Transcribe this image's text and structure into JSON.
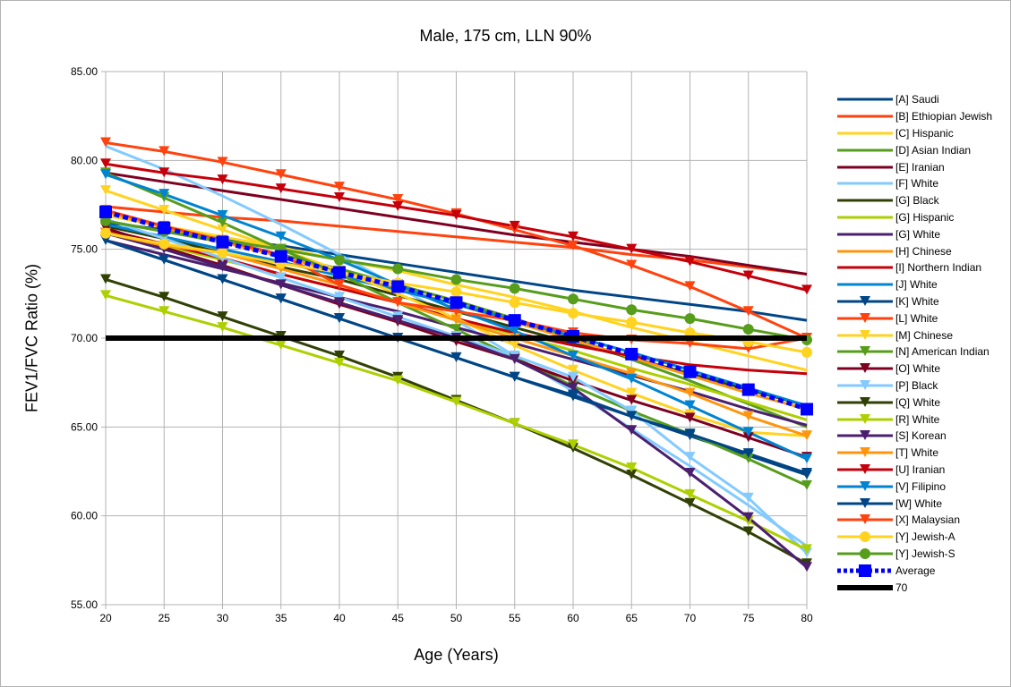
{
  "chart_data": {
    "type": "line",
    "title": "Male, 175 cm, LLN 90%",
    "xlabel": "Age (Years)",
    "ylabel": "FEV1/FVC Ratio (%)",
    "xlim": [
      20,
      80
    ],
    "ylim": [
      55,
      85
    ],
    "x_ticks": [
      "20",
      "25",
      "30",
      "35",
      "40",
      "45",
      "50",
      "55",
      "60",
      "65",
      "70",
      "75",
      "80"
    ],
    "y_ticks": [
      "55.00",
      "60.00",
      "65.00",
      "70.00",
      "75.00",
      "80.00",
      "85.00"
    ],
    "grid": true,
    "legend_position": "right",
    "x": [
      20,
      25,
      30,
      35,
      40,
      45,
      50,
      55,
      60,
      65,
      70,
      75,
      80
    ],
    "series": [
      {
        "name": "[A] Saudi",
        "color": "#004586",
        "marker": "none",
        "dashed": false,
        "values": [
          76.5,
          76.1,
          75.6,
          75.2,
          74.7,
          74.2,
          73.7,
          73.2,
          72.7,
          72.3,
          71.9,
          71.5,
          71.0
        ]
      },
      {
        "name": "[B] Ethiopian Jewish",
        "color": "#ff420e",
        "marker": "none",
        "dashed": false,
        "values": [
          77.4,
          77.1,
          76.8,
          76.6,
          76.3,
          76.0,
          75.7,
          75.4,
          75.1,
          74.7,
          74.4,
          74.0,
          73.6
        ]
      },
      {
        "name": "[C] Hispanic",
        "color": "#ffd320",
        "marker": "none",
        "dashed": false,
        "values": [
          76.9,
          76.3,
          75.7,
          75.1,
          74.4,
          73.8,
          73.0,
          72.3,
          71.5,
          70.6,
          69.8,
          69.0,
          68.2
        ]
      },
      {
        "name": "[D] Asian Indian",
        "color": "#579d1c",
        "marker": "none",
        "dashed": false,
        "values": [
          76.6,
          76.0,
          75.4,
          74.7,
          73.9,
          73.0,
          72.1,
          71.1,
          70.0,
          68.8,
          67.6,
          66.3,
          65.0
        ]
      },
      {
        "name": "[E] Iranian",
        "color": "#7e0021",
        "marker": "none",
        "dashed": false,
        "values": [
          79.3,
          78.8,
          78.3,
          77.8,
          77.3,
          76.8,
          76.3,
          75.8,
          75.4,
          75.0,
          74.6,
          74.1,
          73.6
        ]
      },
      {
        "name": "[F] White",
        "color": "#83caff",
        "marker": "none",
        "dashed": false,
        "values": [
          80.8,
          79.5,
          78.0,
          76.4,
          74.7,
          72.9,
          71.0,
          69.0,
          67.0,
          64.9,
          62.8,
          60.6,
          58.3
        ]
      },
      {
        "name": "[G] Black",
        "color": "#314004",
        "marker": "none",
        "dashed": false,
        "values": [
          76.3,
          75.6,
          74.8,
          74.0,
          73.3,
          72.4,
          71.5,
          70.6,
          69.7,
          68.9,
          68.0,
          67.1,
          66.2
        ]
      },
      {
        "name": "[G] Hispanic",
        "color": "#aecf00",
        "marker": "none",
        "dashed": false,
        "values": [
          76.0,
          75.2,
          74.4,
          73.6,
          72.8,
          72.0,
          71.1,
          70.2,
          69.3,
          68.3,
          67.4,
          66.4,
          65.4
        ]
      },
      {
        "name": "[G] White",
        "color": "#4b1f6f",
        "marker": "none",
        "dashed": false,
        "values": [
          75.5,
          74.7,
          73.9,
          73.1,
          72.3,
          71.5,
          70.6,
          69.7,
          68.8,
          67.9,
          67.0,
          66.0,
          65.1
        ]
      },
      {
        "name": "[H] Chinese",
        "color": "#ff950e",
        "marker": "none",
        "dashed": false,
        "values": [
          77.1,
          76.2,
          75.4,
          74.6,
          73.7,
          72.8,
          71.9,
          70.9,
          69.9,
          68.9,
          67.9,
          66.9,
          66.0
        ]
      },
      {
        "name": "[I] Northern Indian",
        "color": "#c5000b",
        "marker": "none",
        "dashed": false,
        "values": [
          76.1,
          75.3,
          74.5,
          73.6,
          72.8,
          72.0,
          71.1,
          70.3,
          69.6,
          69.0,
          68.5,
          68.2,
          68.0
        ]
      },
      {
        "name": "[J] White",
        "color": "#0084d1",
        "marker": "none",
        "dashed": false,
        "values": [
          76.4,
          75.7,
          75.0,
          74.3,
          73.5,
          72.7,
          71.9,
          71.0,
          70.1,
          69.2,
          68.2,
          67.2,
          66.2
        ]
      },
      {
        "name": "[K] White",
        "color": "#004586",
        "marker": "triangle",
        "dashed": false,
        "values": [
          75.5,
          74.4,
          73.3,
          72.2,
          71.1,
          70.0,
          68.9,
          67.8,
          66.7,
          65.6,
          64.5,
          63.4,
          62.3
        ]
      },
      {
        "name": "[L] White",
        "color": "#ff420e",
        "marker": "triangle",
        "dashed": false,
        "values": [
          81.0,
          80.5,
          79.9,
          79.2,
          78.5,
          77.8,
          77.0,
          76.1,
          75.2,
          74.1,
          72.9,
          71.5,
          70.0
        ]
      },
      {
        "name": "[M] Chinese",
        "color": "#ffd320",
        "marker": "triangle",
        "dashed": false,
        "values": [
          78.3,
          77.2,
          76.1,
          75.0,
          73.8,
          72.5,
          71.1,
          69.6,
          68.2,
          66.9,
          65.7,
          64.7,
          64.5
        ]
      },
      {
        "name": "[N] American Indian",
        "color": "#579d1c",
        "marker": "triangle",
        "dashed": false,
        "values": [
          79.3,
          77.9,
          76.5,
          75.0,
          73.6,
          72.0,
          70.5,
          68.9,
          67.3,
          65.9,
          64.6,
          63.2,
          61.7
        ]
      },
      {
        "name": "[O] White",
        "color": "#7e0021",
        "marker": "triangle",
        "dashed": false,
        "values": [
          76.2,
          75.1,
          74.1,
          73.0,
          71.9,
          70.9,
          69.8,
          68.8,
          67.6,
          66.5,
          65.5,
          64.4,
          63.3
        ]
      },
      {
        "name": "[P] Black",
        "color": "#83caff",
        "marker": "triangle",
        "dashed": false,
        "values": [
          76.7,
          75.6,
          74.5,
          73.4,
          72.3,
          71.2,
          70.1,
          69.0,
          67.8,
          65.9,
          63.3,
          61.0,
          57.9
        ]
      },
      {
        "name": "[Q] White",
        "color": "#314004",
        "marker": "triangle",
        "dashed": false,
        "values": [
          73.3,
          72.3,
          71.2,
          70.1,
          69.0,
          67.8,
          66.5,
          65.2,
          63.8,
          62.3,
          60.7,
          59.1,
          57.3
        ]
      },
      {
        "name": "[R] White",
        "color": "#aecf00",
        "marker": "triangle",
        "dashed": false,
        "values": [
          72.4,
          71.5,
          70.6,
          69.6,
          68.6,
          67.6,
          66.4,
          65.2,
          64.0,
          62.7,
          61.2,
          59.7,
          58.1
        ]
      },
      {
        "name": "[S] Korean",
        "color": "#4b1f6f",
        "marker": "triangle",
        "dashed": false,
        "values": [
          75.9,
          75.0,
          74.0,
          73.0,
          72.0,
          71.0,
          70.0,
          68.8,
          67.2,
          64.8,
          62.4,
          59.9,
          57.1
        ]
      },
      {
        "name": "[T] White",
        "color": "#ff950e",
        "marker": "triangle",
        "dashed": false,
        "values": [
          75.9,
          75.2,
          74.8,
          73.9,
          73.0,
          72.0,
          71.0,
          70.0,
          69.0,
          68.0,
          66.9,
          65.6,
          64.5
        ]
      },
      {
        "name": "[U] Iranian",
        "color": "#c5000b",
        "marker": "triangle",
        "dashed": false,
        "values": [
          79.8,
          79.3,
          78.9,
          78.4,
          77.9,
          77.4,
          76.9,
          76.3,
          75.7,
          75.0,
          74.3,
          73.5,
          72.7
        ]
      },
      {
        "name": "[V] Filipino",
        "color": "#0084d1",
        "marker": "triangle",
        "dashed": false,
        "values": [
          79.2,
          78.1,
          76.9,
          75.7,
          74.4,
          73.0,
          71.6,
          70.4,
          69.0,
          67.7,
          66.2,
          64.7,
          63.2
        ]
      },
      {
        "name": "[W] White",
        "color": "#004586",
        "marker": "triangle",
        "dashed": false,
        "values": [
          75.5,
          74.4,
          73.3,
          72.2,
          71.1,
          70.0,
          68.9,
          67.8,
          66.8,
          65.6,
          64.6,
          63.5,
          62.4
        ]
      },
      {
        "name": "[X] Malaysian",
        "color": "#ff420e",
        "marker": "triangle",
        "dashed": false,
        "values": [
          77.2,
          76.3,
          75.5,
          74.7,
          73.0,
          72.0,
          71.5,
          71.0,
          70.3,
          69.9,
          69.7,
          69.4,
          70.0
        ]
      },
      {
        "name": "[Y] Jewish-A",
        "color": "#ffd320",
        "marker": "circle",
        "dashed": false,
        "values": [
          75.9,
          75.3,
          74.8,
          74.2,
          73.7,
          73.1,
          72.6,
          72.0,
          71.4,
          70.9,
          70.3,
          69.8,
          69.2
        ]
      },
      {
        "name": "[Y] Jewish-S",
        "color": "#579d1c",
        "marker": "circle",
        "dashed": false,
        "values": [
          76.6,
          76.0,
          75.5,
          75.0,
          74.4,
          73.9,
          73.3,
          72.8,
          72.2,
          71.6,
          71.1,
          70.5,
          69.9
        ]
      },
      {
        "name": "Average",
        "color": "#0000ff",
        "marker": "square",
        "dashed": true,
        "values": [
          77.1,
          76.2,
          75.4,
          74.6,
          73.7,
          72.9,
          72.0,
          71.0,
          70.1,
          69.1,
          68.1,
          67.1,
          66.0
        ]
      },
      {
        "name": "70",
        "color": "#000000",
        "marker": "none",
        "dashed": false,
        "thick": true,
        "values": [
          70,
          70,
          70,
          70,
          70,
          70,
          70,
          70,
          70,
          70,
          70,
          70,
          70
        ]
      }
    ]
  }
}
